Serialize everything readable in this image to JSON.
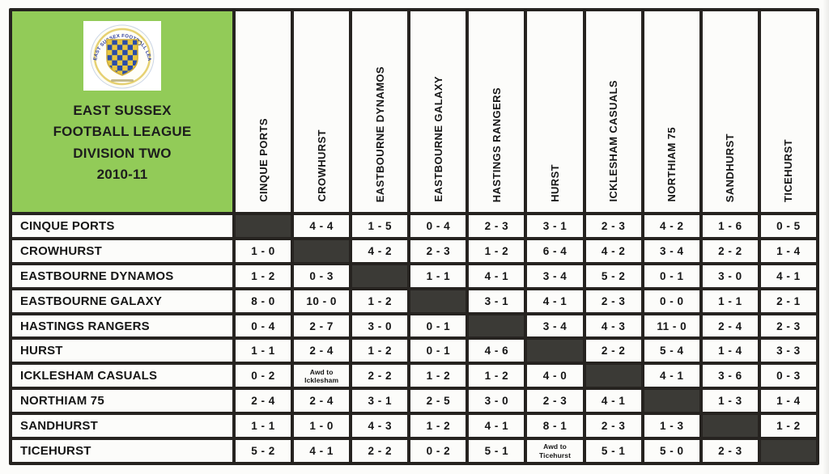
{
  "league": {
    "title_lines": [
      "EAST SUSSEX",
      "FOOTBALL LEAGUE",
      "DIVISION TWO",
      "2010-11"
    ],
    "logo_top_text": "THE EAST SUSSEX FOOTBALL LEAGUE"
  },
  "teams": [
    "CINQUE PORTS",
    "CROWHURST",
    "EASTBOURNE DYNAMOS",
    "EASTBOURNE GALAXY",
    "HASTINGS RANGERS",
    "HURST",
    "ICKLESHAM CASUALS",
    "NORTHIAM 75",
    "SANDHURST",
    "TICEHURST"
  ],
  "results": [
    [
      null,
      "4 - 4",
      "1 - 5",
      "0 - 4",
      "2 - 3",
      "3 - 1",
      "2 - 3",
      "4 - 2",
      "1 - 6",
      "0 - 5"
    ],
    [
      "1 - 0",
      null,
      "4 - 2",
      "2 - 3",
      "1 - 2",
      "6 - 4",
      "4 - 2",
      "3 - 4",
      "2 - 2",
      "1 - 4"
    ],
    [
      "1 - 2",
      "0 - 3",
      null,
      "1 - 1",
      "4 - 1",
      "3 - 4",
      "5 - 2",
      "0 - 1",
      "3 - 0",
      "4 - 1"
    ],
    [
      "8 - 0",
      "10 - 0",
      "1 - 2",
      null,
      "3 - 1",
      "4 - 1",
      "2 - 3",
      "0 - 0",
      "1 - 1",
      "2 - 1"
    ],
    [
      "0 - 4",
      "2 - 7",
      "3 - 0",
      "0 - 1",
      null,
      "3 - 4",
      "4 - 3",
      "11 - 0",
      "2 - 4",
      "2 - 3"
    ],
    [
      "1 - 1",
      "2 - 4",
      "1 - 2",
      "0 - 1",
      "4 - 6",
      null,
      "2 - 2",
      "5 - 4",
      "1 - 4",
      "3 - 3"
    ],
    [
      "0 - 2",
      {
        "lines": [
          "Awd to",
          "Icklesham"
        ]
      },
      "2 - 2",
      "1 - 2",
      "1 - 2",
      "4 - 0",
      null,
      "4 - 1",
      "3 - 6",
      "0 - 3"
    ],
    [
      "2 - 4",
      "2 - 4",
      "3 - 1",
      "2 - 5",
      "3 - 0",
      "2 - 3",
      "4 - 1",
      null,
      "1 - 3",
      "1 - 4"
    ],
    [
      "1 - 1",
      "1 - 0",
      "4 - 3",
      "1 - 2",
      "4 - 1",
      "8 - 1",
      "2 - 3",
      "1 - 3",
      null,
      "1 - 2"
    ],
    [
      "5 - 2",
      "4 - 1",
      "2 - 2",
      "0 - 2",
      "5 - 1",
      {
        "lines": [
          "Awd to",
          "Ticehurst"
        ]
      },
      "5 - 1",
      "5 - 0",
      "2 - 3",
      null
    ]
  ],
  "colors": {
    "header_green": "#92cb58",
    "diagonal_dark": "#3b3a36",
    "border_black": "#262320",
    "badge_blue": "#2b4da6",
    "badge_yellow": "#e9c73f"
  }
}
